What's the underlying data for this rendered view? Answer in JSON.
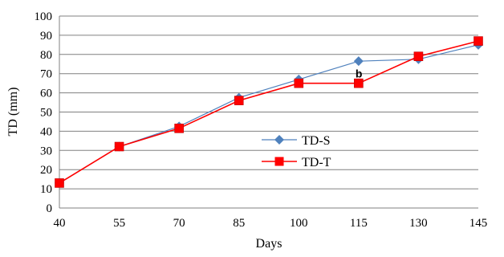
{
  "chart_data": {
    "type": "line",
    "xlabel": "Days",
    "ylabel": "TD (mm)",
    "x": [
      40,
      55,
      70,
      85,
      100,
      115,
      130,
      145
    ],
    "xticks": [
      "40",
      "55",
      "70",
      "85",
      "100",
      "115",
      "130",
      "145"
    ],
    "yticks": [
      "0",
      "10",
      "20",
      "30",
      "40",
      "50",
      "60",
      "70",
      "80",
      "90",
      "100"
    ],
    "ylim": [
      0,
      100
    ],
    "grid": "horizontal",
    "legend_position": "center-right",
    "series": [
      {
        "name": "TD-S",
        "values": [
          13,
          32,
          42.5,
          57.5,
          67,
          76.5,
          77.5,
          85
        ],
        "color": "#4f81bd",
        "marker": "diamond"
      },
      {
        "name": "TD-T",
        "values": [
          13,
          32,
          41.5,
          56,
          65,
          65,
          79,
          87
        ],
        "color": "#ff0000",
        "marker": "square"
      }
    ],
    "annotations": [
      {
        "text": "b",
        "x": 115,
        "y": 70
      }
    ]
  }
}
